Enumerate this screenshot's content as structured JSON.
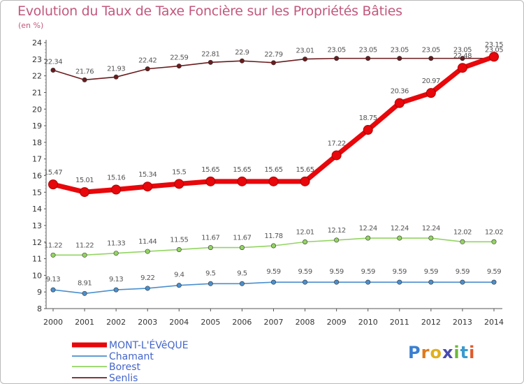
{
  "title": "Evolution du Taux de Taxe Foncière sur les Propriétés Bâties",
  "unit": "(en %)",
  "brand": "Proxiti",
  "chart_data": {
    "type": "line",
    "x": [
      2000,
      2001,
      2002,
      2003,
      2004,
      2005,
      2006,
      2007,
      2008,
      2009,
      2010,
      2011,
      2012,
      2013,
      2014
    ],
    "ylim": [
      8,
      24
    ],
    "yticks": [
      8,
      9,
      10,
      11,
      12,
      13,
      14,
      15,
      16,
      17,
      18,
      19,
      20,
      21,
      22,
      23,
      24
    ],
    "grid": false,
    "legend_position": "bottom-left",
    "series": [
      {
        "name": "MONT-L'ÉVêQUE",
        "color": "#e8070b",
        "values": [
          15.47,
          15.01,
          15.16,
          15.34,
          15.5,
          15.65,
          15.65,
          15.65,
          15.65,
          17.22,
          18.75,
          20.36,
          20.97,
          22.48,
          23.15
        ],
        "labels": [
          "15.47",
          "15.01",
          "15.16",
          "15.34",
          "15.5",
          "15.65",
          "15.65",
          "15.65",
          "15.65",
          "17.22",
          "18.75",
          "20.36",
          "20.97",
          "22.48",
          "23.15"
        ]
      },
      {
        "name": "Chamant",
        "color": "#4a8fcd",
        "values": [
          9.13,
          8.91,
          9.13,
          9.22,
          9.4,
          9.5,
          9.5,
          9.59,
          9.59,
          9.59,
          9.59,
          9.59,
          9.59,
          9.59,
          9.59
        ],
        "labels": [
          "9.13",
          "8.91",
          "9.13",
          "9.22",
          "9.4",
          "9.5",
          "9.5",
          "9.59",
          "9.59",
          "9.59",
          "9.59",
          "9.59",
          "9.59",
          "9.59",
          "9.59"
        ]
      },
      {
        "name": "Borest",
        "color": "#93d462",
        "values": [
          11.22,
          11.22,
          11.33,
          11.44,
          11.55,
          11.67,
          11.67,
          11.78,
          12.01,
          12.12,
          12.24,
          12.24,
          12.24,
          12.02,
          12.02
        ],
        "labels": [
          "11.22",
          "11.22",
          "11.33",
          "11.44",
          "11.55",
          "11.67",
          "11.67",
          "11.78",
          "12.01",
          "12.12",
          "12.24",
          "12.24",
          "12.24",
          "12.02",
          "12.02"
        ]
      },
      {
        "name": "Senlis",
        "color": "#6b1b1d",
        "values": [
          22.34,
          21.76,
          21.93,
          22.42,
          22.59,
          22.81,
          22.9,
          22.79,
          23.01,
          23.05,
          23.05,
          23.05,
          23.05,
          23.05,
          23.05
        ],
        "labels": [
          "22.34",
          "21.76",
          "21.93",
          "22.42",
          "22.59",
          "22.81",
          "22.9",
          "22.79",
          "23.01",
          "23.05",
          "23.05",
          "23.05",
          "23.05",
          "23.05",
          "23.05"
        ]
      }
    ]
  }
}
